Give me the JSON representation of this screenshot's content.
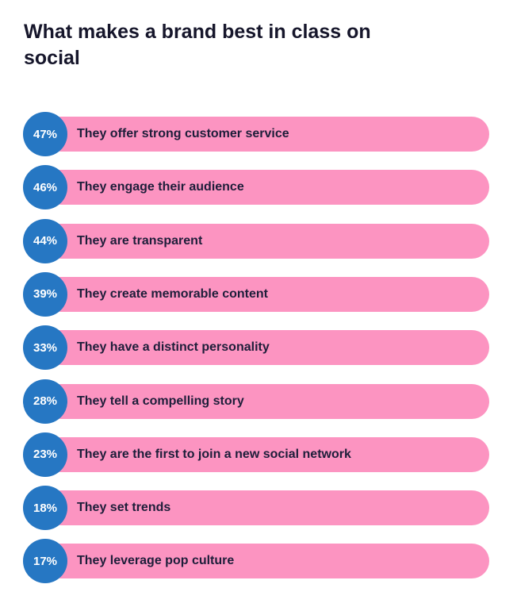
{
  "chart_data": {
    "type": "bar",
    "title": "What makes a brand best in class on social",
    "categories": [
      "They offer strong customer service",
      "They engage their audience",
      "They are transparent",
      "They create memorable content",
      "They have a distinct personality",
      "They tell a compelling story",
      "They are the first to join a new social network",
      "They set trends",
      "They leverage pop culture"
    ],
    "values": [
      47,
      46,
      44,
      39,
      33,
      28,
      23,
      18,
      17
    ],
    "value_labels": [
      "47%",
      "46%",
      "44%",
      "39%",
      "33%",
      "28%",
      "23%",
      "18%",
      "17%"
    ],
    "colors": {
      "circle": "#2677c3",
      "bar": "#fc94c1"
    }
  }
}
